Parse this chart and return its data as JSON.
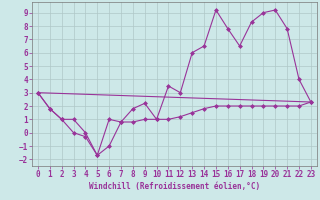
{
  "xlabel": "Windchill (Refroidissement éolien,°C)",
  "background_color": "#cde8e8",
  "grid_color": "#b0c8c8",
  "line_color": "#993399",
  "x_range": [
    -0.5,
    23.5
  ],
  "y_range": [
    -2.5,
    9.8
  ],
  "y_ticks": [
    -2,
    -1,
    0,
    1,
    2,
    3,
    4,
    5,
    6,
    7,
    8,
    9
  ],
  "x_ticks": [
    0,
    1,
    2,
    3,
    4,
    5,
    6,
    7,
    8,
    9,
    10,
    11,
    12,
    13,
    14,
    15,
    16,
    17,
    18,
    19,
    20,
    21,
    22,
    23
  ],
  "series1_x": [
    0,
    1,
    2,
    3,
    4,
    5,
    6,
    7,
    8,
    9,
    10,
    11,
    12,
    13,
    14,
    15,
    16,
    17,
    18,
    19,
    20,
    21,
    22,
    23
  ],
  "series1_y": [
    3.0,
    1.8,
    1.0,
    0.0,
    -0.3,
    -1.7,
    -1.0,
    0.8,
    1.8,
    2.2,
    1.0,
    3.5,
    3.0,
    6.0,
    6.5,
    9.2,
    7.8,
    6.5,
    8.3,
    9.0,
    9.2,
    7.8,
    4.0,
    2.3
  ],
  "series2_x": [
    0,
    1,
    2,
    3,
    4,
    5,
    6,
    7,
    8,
    9,
    10,
    11,
    12,
    13,
    14,
    15,
    16,
    17,
    18,
    19,
    20,
    21,
    22,
    23
  ],
  "series2_y": [
    3.0,
    1.8,
    1.0,
    1.0,
    0.0,
    -1.7,
    1.0,
    0.8,
    0.8,
    1.0,
    1.0,
    1.0,
    1.2,
    1.5,
    1.8,
    2.0,
    2.0,
    2.0,
    2.0,
    2.0,
    2.0,
    2.0,
    2.0,
    2.3
  ],
  "series3_x": [
    0,
    23
  ],
  "series3_y": [
    3.0,
    2.3
  ],
  "tick_fontsize": 5.5,
  "xlabel_fontsize": 5.5
}
